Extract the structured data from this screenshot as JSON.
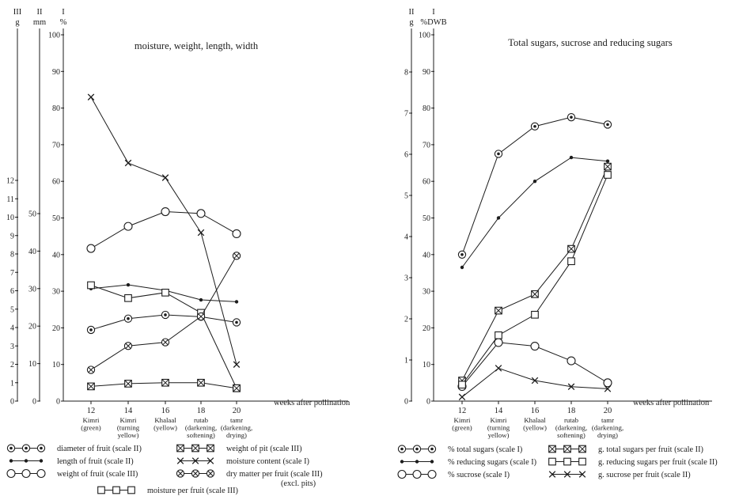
{
  "colors": {
    "ink": "#1c1c1c",
    "background": "#ffffff"
  },
  "chart_data": [
    {
      "type": "line",
      "title": "moisture, weight, length, width",
      "xlabel": "weeks after pollination",
      "x": [
        12,
        14,
        16,
        18,
        20
      ],
      "stages": [
        [
          "Kimri",
          "(green)"
        ],
        [
          "Kimri",
          "(turning",
          "yellow)"
        ],
        [
          "Khalaal",
          "(yellow)"
        ],
        [
          "rutab",
          "(darkening,",
          "softening)"
        ],
        [
          "tamr",
          "(darkening,",
          "drying)"
        ]
      ],
      "axes": [
        {
          "id": "III",
          "name": "III",
          "unit": "g",
          "min": 0,
          "max": 12,
          "ticks": [
            0,
            1,
            2,
            3,
            4,
            5,
            6,
            7,
            8,
            9,
            10,
            11,
            12
          ]
        },
        {
          "id": "II",
          "name": "II",
          "unit": "mm",
          "min": 0,
          "max": 50,
          "ticks": [
            0,
            10,
            20,
            30,
            40,
            50
          ]
        },
        {
          "id": "I",
          "name": "I",
          "unit": "%",
          "min": 0,
          "max": 100,
          "ticks": [
            0,
            10,
            20,
            30,
            40,
            50,
            60,
            70,
            80,
            90,
            100
          ]
        }
      ],
      "series": [
        {
          "name": "moisture content",
          "scale": "I",
          "marker": "x",
          "values": [
            83,
            65,
            61,
            46,
            10
          ]
        },
        {
          "name": "weight of fruit",
          "scale": "III",
          "marker": "circle",
          "values": [
            8.3,
            9.5,
            10.3,
            10.2,
            9.1
          ]
        },
        {
          "name": "length of fruit",
          "scale": "II",
          "marker": "dot",
          "values": [
            30,
            31,
            29.5,
            27,
            26.5
          ]
        },
        {
          "name": "diameter of fruit",
          "scale": "II",
          "marker": "circle-dot",
          "values": [
            19,
            22,
            23,
            22.5,
            21
          ]
        },
        {
          "name": "moisture per fruit",
          "scale": "III",
          "marker": "square",
          "values": [
            6.3,
            5.6,
            5.9,
            4.8,
            0.7
          ]
        },
        {
          "name": "dry matter per fruit",
          "scale": "III",
          "marker": "circle-x",
          "values": [
            1.7,
            3.0,
            3.2,
            4.6,
            7.9
          ]
        },
        {
          "name": "weight of pit",
          "scale": "III",
          "marker": "square-x",
          "values": [
            0.8,
            0.95,
            1.0,
            1.0,
            0.7
          ]
        }
      ],
      "legend": [
        {
          "marker": "circle-dot",
          "label": "diameter of fruit (scale II)"
        },
        {
          "marker": "dot",
          "label": "length of fruit (scale II)"
        },
        {
          "marker": "circle",
          "label": "weight of fruit (scale III)"
        },
        {
          "marker": "square-x",
          "label": "weight of pit (scale III)"
        },
        {
          "marker": "x",
          "label": "moisture content (scale I)"
        },
        {
          "marker": "circle-x",
          "label": "dry matter per fruit (scale III)",
          "note": "(excl. pits)"
        },
        {
          "marker": "square",
          "label": "moisture per fruit (scale III)"
        }
      ]
    },
    {
      "type": "line",
      "title": "Total sugars, sucrose and reducing sugars",
      "xlabel": "weeks after pollination",
      "x": [
        12,
        14,
        16,
        18,
        20
      ],
      "stages": [
        [
          "Kimri",
          "(green)"
        ],
        [
          "Kimri",
          "(turning",
          "yellow)"
        ],
        [
          "Khalaal",
          "(yellow)"
        ],
        [
          "rutab",
          "(darkening,",
          "softening)"
        ],
        [
          "tamr",
          "(darkening,",
          "drying)"
        ]
      ],
      "axes": [
        {
          "id": "II",
          "name": "II",
          "unit": "g",
          "min": 0,
          "max": 8,
          "ticks": [
            0,
            1,
            2,
            3,
            4,
            5,
            6,
            7,
            8
          ]
        },
        {
          "id": "I",
          "name": "I",
          "unit": "%DWB",
          "min": 0,
          "max": 100,
          "ticks": [
            0,
            10,
            20,
            30,
            40,
            50,
            60,
            70,
            80,
            90,
            100
          ]
        }
      ],
      "series": [
        {
          "name": "% total sugars",
          "scale": "I",
          "marker": "circle-dot",
          "values": [
            40,
            67.5,
            75,
            77.5,
            75.5
          ]
        },
        {
          "name": "% reducing sugars",
          "scale": "I",
          "marker": "dot",
          "values": [
            36.5,
            50,
            60,
            66.5,
            65.5
          ]
        },
        {
          "name": "% sucrose",
          "scale": "I",
          "marker": "circle",
          "values": [
            4,
            16,
            15,
            11,
            5
          ]
        },
        {
          "name": "g. total sugars per fruit",
          "scale": "II",
          "marker": "square-x",
          "values": [
            0.5,
            2.2,
            2.6,
            3.7,
            5.7
          ]
        },
        {
          "name": "g. reducing sugars per fruit",
          "scale": "II",
          "marker": "square",
          "values": [
            0.4,
            1.6,
            2.1,
            3.4,
            5.5
          ]
        },
        {
          "name": "g. sucrose per fruit",
          "scale": "II",
          "marker": "x",
          "values": [
            0.1,
            0.8,
            0.5,
            0.35,
            0.3
          ]
        }
      ],
      "legend": [
        {
          "marker": "circle-dot",
          "label": "% total sugars (scale I)"
        },
        {
          "marker": "dot",
          "label": "% reducing sugars (scale I)"
        },
        {
          "marker": "circle",
          "label": "% sucrose (scale I)"
        },
        {
          "marker": "square-x",
          "label": "g. total sugars per fruit (scale II)"
        },
        {
          "marker": "square",
          "label": "g. reducing sugars per fruit (scale II)"
        },
        {
          "marker": "x",
          "label": "g. sucrose per fruit (scale II)"
        }
      ]
    }
  ]
}
